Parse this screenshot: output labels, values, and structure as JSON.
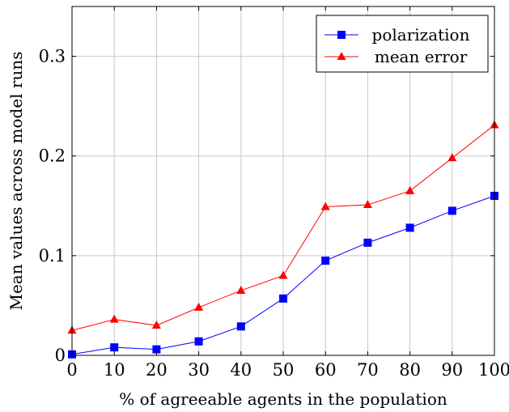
{
  "chart_data": {
    "type": "line",
    "title": "",
    "xlabel": "% of agreeable agents in the population",
    "ylabel": "Mean values across model runs",
    "x": [
      0,
      10,
      20,
      30,
      40,
      50,
      60,
      70,
      80,
      90,
      100
    ],
    "xlim": [
      0,
      100
    ],
    "ylim": [
      0,
      0.35
    ],
    "xticks": [
      0,
      10,
      20,
      30,
      40,
      50,
      60,
      70,
      80,
      90,
      100
    ],
    "xtick_labels": [
      "0",
      "10",
      "20",
      "30",
      "40",
      "50",
      "60",
      "70",
      "80",
      "90",
      "100"
    ],
    "yticks": [
      0,
      0.1,
      0.2,
      0.3
    ],
    "ytick_labels": [
      "0",
      "0.1",
      "0.2",
      "0.3"
    ],
    "grid": true,
    "legend_position": "top-right",
    "series": [
      {
        "name": "polarization",
        "color": "#0000ff",
        "marker": "square",
        "values": [
          0.001,
          0.008,
          0.006,
          0.014,
          0.029,
          0.057,
          0.095,
          0.113,
          0.128,
          0.145,
          0.16
        ]
      },
      {
        "name": "mean error",
        "color": "#ff0000",
        "marker": "triangle",
        "values": [
          0.025,
          0.036,
          0.03,
          0.048,
          0.065,
          0.08,
          0.149,
          0.151,
          0.165,
          0.198,
          0.231
        ]
      }
    ]
  }
}
